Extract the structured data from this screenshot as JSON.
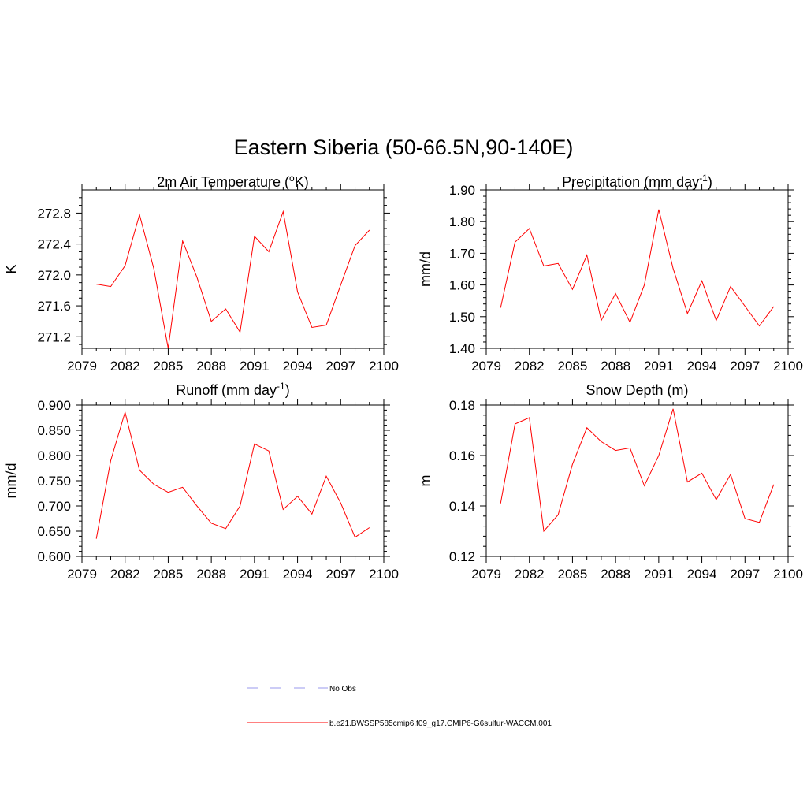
{
  "figure": {
    "title": "Eastern Siberia (50-66.5N,90-140E)"
  },
  "legend": {
    "entries": [
      {
        "label": "No Obs",
        "color": "#9a9aee",
        "style": "dashed"
      },
      {
        "label": "b.e21.BWSSP585cmip6.f09_g17.CMIP6-G6sulfur-WACCM.001",
        "color": "#ff0000",
        "style": "solid"
      }
    ]
  },
  "chart_data": [
    {
      "type": "line",
      "title": {
        "main": "2m Air Temperature (",
        "sup_prefix": "o",
        "main2": "K)"
      },
      "xlabel": "",
      "ylabel": "K",
      "xlim": [
        2079,
        2100
      ],
      "ylim": [
        271.05,
        273.1
      ],
      "xticks": [
        2079,
        2082,
        2085,
        2088,
        2091,
        2094,
        2097,
        2100
      ],
      "xticklabels": [
        "2079",
        "2082",
        "2085",
        "2088",
        "2091",
        "2094",
        "2097",
        "2100"
      ],
      "yticks": [
        271.2,
        271.6,
        272.0,
        272.4,
        272.8
      ],
      "yticklabels": [
        "271.2",
        "271.6",
        "272.0",
        "272.4",
        "272.8"
      ],
      "series": [
        {
          "color": "#ff0000",
          "x": [
            2080,
            2081,
            2082,
            2083,
            2084,
            2085,
            2086,
            2087,
            2088,
            2089,
            2090,
            2091,
            2092,
            2093,
            2094,
            2095,
            2096,
            2097,
            2098,
            2099
          ],
          "values": [
            271.88,
            271.85,
            272.12,
            272.78,
            272.08,
            271.05,
            272.44,
            271.97,
            271.4,
            271.56,
            271.26,
            272.5,
            272.3,
            272.82,
            271.78,
            271.32,
            271.35,
            271.87,
            272.38,
            272.58
          ]
        }
      ]
    },
    {
      "type": "line",
      "title": {
        "main": "Precipitation (mm day",
        "sup": "-1",
        "main2": ")"
      },
      "xlabel": "",
      "ylabel": "mm/d",
      "xlim": [
        2079,
        2100
      ],
      "ylim": [
        1.4,
        1.9
      ],
      "xticks": [
        2079,
        2082,
        2085,
        2088,
        2091,
        2094,
        2097,
        2100
      ],
      "xticklabels": [
        "2079",
        "2082",
        "2085",
        "2088",
        "2091",
        "2094",
        "2097",
        "2100"
      ],
      "yticks": [
        1.4,
        1.5,
        1.6,
        1.7,
        1.8,
        1.9
      ],
      "yticklabels": [
        "1.40",
        "1.50",
        "1.60",
        "1.70",
        "1.80",
        "1.90"
      ],
      "series": [
        {
          "color": "#ff0000",
          "x": [
            2080,
            2081,
            2082,
            2083,
            2084,
            2085,
            2086,
            2087,
            2088,
            2089,
            2090,
            2091,
            2092,
            2093,
            2094,
            2095,
            2096,
            2097,
            2098,
            2099
          ],
          "values": [
            1.528,
            1.735,
            1.778,
            1.66,
            1.668,
            1.586,
            1.694,
            1.488,
            1.573,
            1.482,
            1.6,
            1.838,
            1.652,
            1.51,
            1.613,
            1.488,
            1.595,
            1.533,
            1.471,
            1.532
          ]
        }
      ]
    },
    {
      "type": "line",
      "title": {
        "main": "Runoff (mm day",
        "sup": "-1",
        "main2": ")"
      },
      "xlabel": "",
      "ylabel": "mm/d",
      "xlim": [
        2079,
        2100
      ],
      "ylim": [
        0.6,
        0.9
      ],
      "xticks": [
        2079,
        2082,
        2085,
        2088,
        2091,
        2094,
        2097,
        2100
      ],
      "xticklabels": [
        "2079",
        "2082",
        "2085",
        "2088",
        "2091",
        "2094",
        "2097",
        "2100"
      ],
      "yticks": [
        0.6,
        0.65,
        0.7,
        0.75,
        0.8,
        0.85,
        0.9
      ],
      "yticklabels": [
        "0.600",
        "0.650",
        "0.700",
        "0.750",
        "0.800",
        "0.850",
        "0.900"
      ],
      "series": [
        {
          "color": "#ff0000",
          "x": [
            2080,
            2081,
            2082,
            2083,
            2084,
            2085,
            2086,
            2087,
            2088,
            2089,
            2090,
            2091,
            2092,
            2093,
            2094,
            2095,
            2096,
            2097,
            2098,
            2099
          ],
          "values": [
            0.635,
            0.79,
            0.886,
            0.771,
            0.743,
            0.727,
            0.737,
            0.7,
            0.666,
            0.655,
            0.7,
            0.823,
            0.809,
            0.693,
            0.719,
            0.684,
            0.759,
            0.706,
            0.638,
            0.657
          ]
        }
      ]
    },
    {
      "type": "line",
      "title": {
        "main": "Snow Depth (m)"
      },
      "xlabel": "",
      "ylabel": "m",
      "xlim": [
        2079,
        2100
      ],
      "ylim": [
        0.12,
        0.18
      ],
      "xticks": [
        2079,
        2082,
        2085,
        2088,
        2091,
        2094,
        2097,
        2100
      ],
      "xticklabels": [
        "2079",
        "2082",
        "2085",
        "2088",
        "2091",
        "2094",
        "2097",
        "2100"
      ],
      "yticks": [
        0.12,
        0.14,
        0.16,
        0.18
      ],
      "yticklabels": [
        "0.12",
        "0.14",
        "0.16",
        "0.18"
      ],
      "series": [
        {
          "color": "#ff0000",
          "x": [
            2080,
            2081,
            2082,
            2083,
            2084,
            2085,
            2086,
            2087,
            2088,
            2089,
            2090,
            2091,
            2092,
            2093,
            2094,
            2095,
            2096,
            2097,
            2098,
            2099
          ],
          "values": [
            0.141,
            0.1725,
            0.175,
            0.13,
            0.1365,
            0.1565,
            0.171,
            0.1655,
            0.162,
            0.163,
            0.148,
            0.16,
            0.1785,
            0.1495,
            0.153,
            0.1425,
            0.1525,
            0.135,
            0.1335,
            0.1485
          ]
        }
      ]
    }
  ]
}
